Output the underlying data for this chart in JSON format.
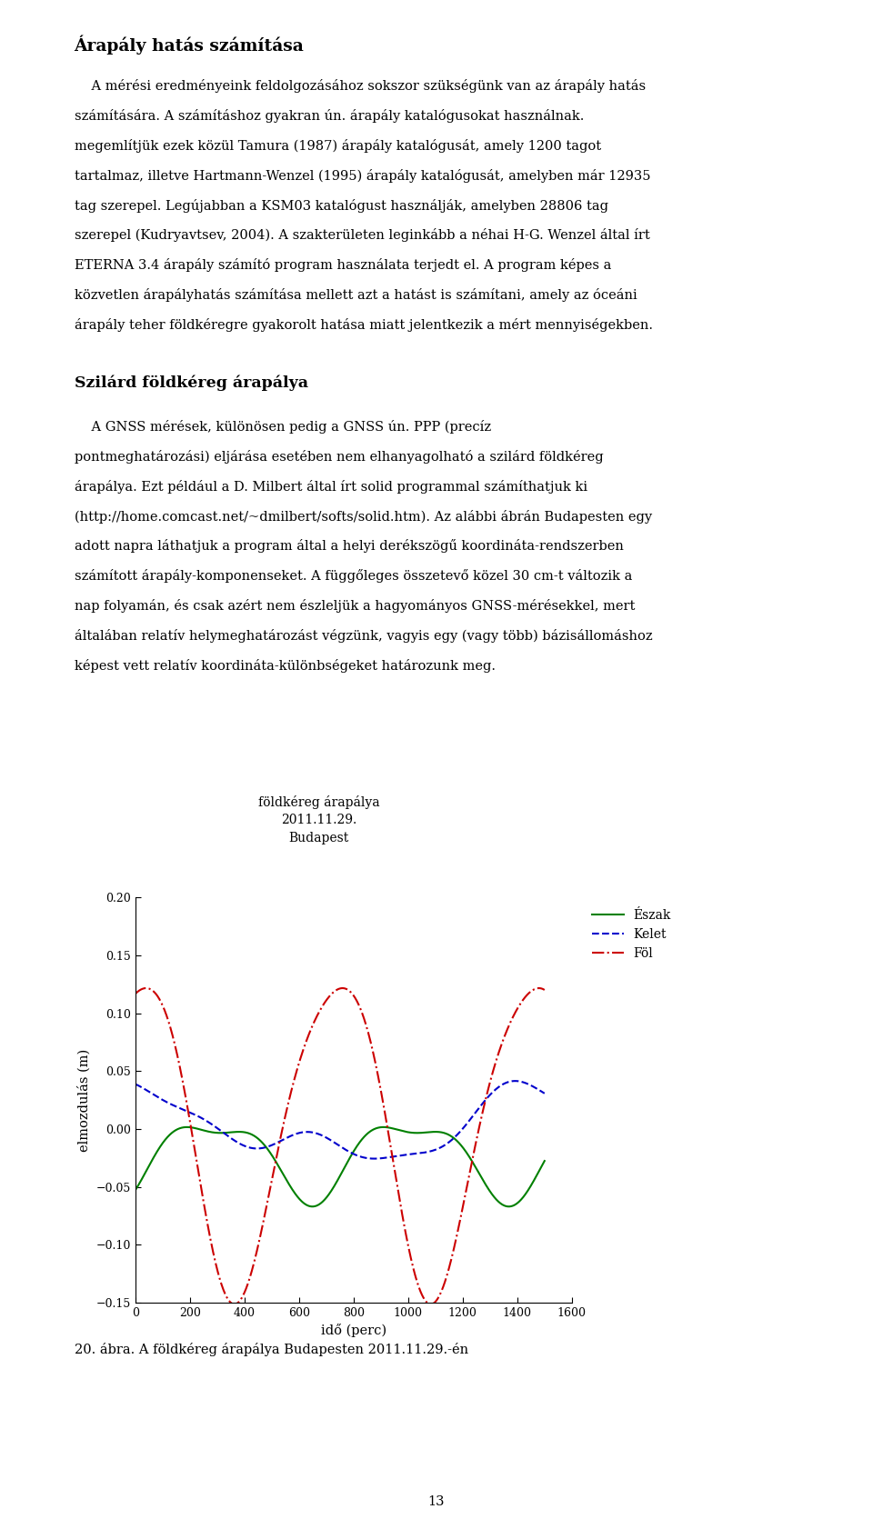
{
  "page_title": "Árapály hatás számítása",
  "section_title": "Szilárd földkéreg árapálya",
  "para1_lines": [
    "    A mérési eredményeink feldolgozásához sokszor szükségünk van az árapály hatás",
    "számítására. A számításhoz gyakran ún. árapály katalógusokat használnak.",
    "megemlítjük ezek közül Tamura (1987) árapály katalógusát, amely 1200 tagot",
    "tartalmaz, illetve Hartmann-Wenzel (1995) árapály katalógusát, amelyben már 12935",
    "tag szerepel. Legújabban a KSM03 katalógust használják, amelyben 28806 tag",
    "szerepel (Kudryavtsev, 2004). A szakterületen leginkább a néhai H-G. Wenzel által írt",
    "ETERNA 3.4 árapály számító program használata terjedt el. A program képes a",
    "közvetlen árapályhatás számítása mellett azt a hatást is számítani, amely az óceáni",
    "árapály teher földkéregre gyakorolt hatása miatt jelentkezik a mért mennyiségekben."
  ],
  "para2_lines": [
    "    A GNSS mérések, különösen pedig a GNSS ún. PPP (precíz",
    "pontmeghatározási) eljárása esetében nem elhanyagolható a szilárd földkéreg",
    "árapálya. Ezt például a D. Milbert által írt solid programmal számíthatjuk ki",
    "(http://home.comcast.net/~dmilbert/softs/solid.htm). Az alábbi ábrán Budapesten egy",
    "adott napra láthatjuk a program által a helyi derékszögű koordináta-rendszerben",
    "számított árapály-komponenseket. A függőleges összetevő közel 30 cm-t változik a",
    "nap folyamán, és csak azért nem észleljük a hagyományos GNSS-mérésekkel, mert",
    "általában relatív helymeghatározást végzünk, vagyis egy (vagy több) bázisállomáshoz",
    "képest vett relatív koordináta-különbségeket határozunk meg."
  ],
  "para2_url_line_idx": 3,
  "chart_title_line1": "földkéreg árapálya",
  "chart_title_line2": "2011.11.29.",
  "chart_title_line3": "Budapest",
  "xlabel": "idő (perc)",
  "ylabel": "elmozdulás (m)",
  "xlim": [
    0,
    1600
  ],
  "ylim": [
    -0.15,
    0.2
  ],
  "xticks": [
    0,
    200,
    400,
    600,
    800,
    1000,
    1200,
    1400,
    1600
  ],
  "yticks": [
    -0.15,
    -0.1,
    -0.05,
    0,
    0.05,
    0.1,
    0.15,
    0.2
  ],
  "legend_entries": [
    "Észak",
    "Kelet",
    "Föl"
  ],
  "line_colors": [
    "#008000",
    "#0000cc",
    "#cc0000"
  ],
  "line_styles": [
    "-",
    "--",
    "-."
  ],
  "caption": "20. ábra. A földkéreg árapálya Budapesten 2011.11.29.-én",
  "page_number": "13",
  "background_color": "#ffffff",
  "text_color": "#000000"
}
